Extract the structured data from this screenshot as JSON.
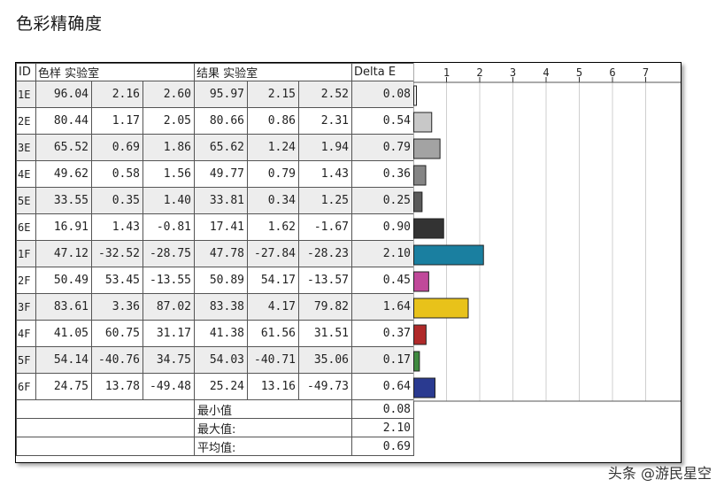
{
  "title": "色彩精确度",
  "watermark": "头条 @游民星空",
  "table": {
    "headers": {
      "id": "ID",
      "sample": "色样 实验室",
      "result": "结果 实验室",
      "delta": "Delta E"
    },
    "rows": [
      {
        "id": "1E",
        "sample": [
          "96.04",
          "2.16",
          "2.60"
        ],
        "result": [
          "95.97",
          "2.15",
          "2.52"
        ],
        "delta": "0.08"
      },
      {
        "id": "2E",
        "sample": [
          "80.44",
          "1.17",
          "2.05"
        ],
        "result": [
          "80.66",
          "0.86",
          "2.31"
        ],
        "delta": "0.54"
      },
      {
        "id": "3E",
        "sample": [
          "65.52",
          "0.69",
          "1.86"
        ],
        "result": [
          "65.62",
          "1.24",
          "1.94"
        ],
        "delta": "0.79"
      },
      {
        "id": "4E",
        "sample": [
          "49.62",
          "0.58",
          "1.56"
        ],
        "result": [
          "49.77",
          "0.79",
          "1.43"
        ],
        "delta": "0.36"
      },
      {
        "id": "5E",
        "sample": [
          "33.55",
          "0.35",
          "1.40"
        ],
        "result": [
          "33.81",
          "0.34",
          "1.25"
        ],
        "delta": "0.25"
      },
      {
        "id": "6E",
        "sample": [
          "16.91",
          "1.43",
          "-0.81"
        ],
        "result": [
          "17.41",
          "1.62",
          "-1.67"
        ],
        "delta": "0.90"
      },
      {
        "id": "1F",
        "sample": [
          "47.12",
          "-32.52",
          "-28.75"
        ],
        "result": [
          "47.78",
          "-27.84",
          "-28.23"
        ],
        "delta": "2.10"
      },
      {
        "id": "2F",
        "sample": [
          "50.49",
          "53.45",
          "-13.55"
        ],
        "result": [
          "50.89",
          "54.17",
          "-13.57"
        ],
        "delta": "0.45"
      },
      {
        "id": "3F",
        "sample": [
          "83.61",
          "3.36",
          "87.02"
        ],
        "result": [
          "83.38",
          "4.17",
          "79.82"
        ],
        "delta": "1.64"
      },
      {
        "id": "4F",
        "sample": [
          "41.05",
          "60.75",
          "31.17"
        ],
        "result": [
          "41.38",
          "61.56",
          "31.51"
        ],
        "delta": "0.37"
      },
      {
        "id": "5F",
        "sample": [
          "54.14",
          "-40.76",
          "34.75"
        ],
        "result": [
          "54.03",
          "-40.71",
          "35.06"
        ],
        "delta": "0.17"
      },
      {
        "id": "6F",
        "sample": [
          "24.75",
          "13.78",
          "-49.48"
        ],
        "result": [
          "25.24",
          "13.16",
          "-49.73"
        ],
        "delta": "0.64"
      }
    ],
    "summary": [
      {
        "label": "最小值",
        "value": "0.08"
      },
      {
        "label": "最大值:",
        "value": "2.10"
      },
      {
        "label": "平均值:",
        "value": "0.69"
      }
    ]
  },
  "chart_data": {
    "type": "bar",
    "orientation": "horizontal",
    "categories": [
      "1E",
      "2E",
      "3E",
      "4E",
      "5E",
      "6E",
      "1F",
      "2F",
      "3F",
      "4F",
      "5F",
      "6F"
    ],
    "values": [
      0.08,
      0.54,
      0.79,
      0.36,
      0.25,
      0.9,
      2.1,
      0.45,
      1.64,
      0.37,
      0.17,
      0.64
    ],
    "colors": [
      "#f4f4f4",
      "#c8c8c8",
      "#a3a3a3",
      "#858585",
      "#5a5a5a",
      "#333333",
      "#1a7fa0",
      "#c0499a",
      "#e8c21a",
      "#b02a2a",
      "#3f8a3f",
      "#2a3a90"
    ],
    "xticks": [
      1,
      2,
      3,
      4,
      5,
      6,
      7
    ],
    "xlim": [
      0,
      8
    ],
    "grid": true
  }
}
